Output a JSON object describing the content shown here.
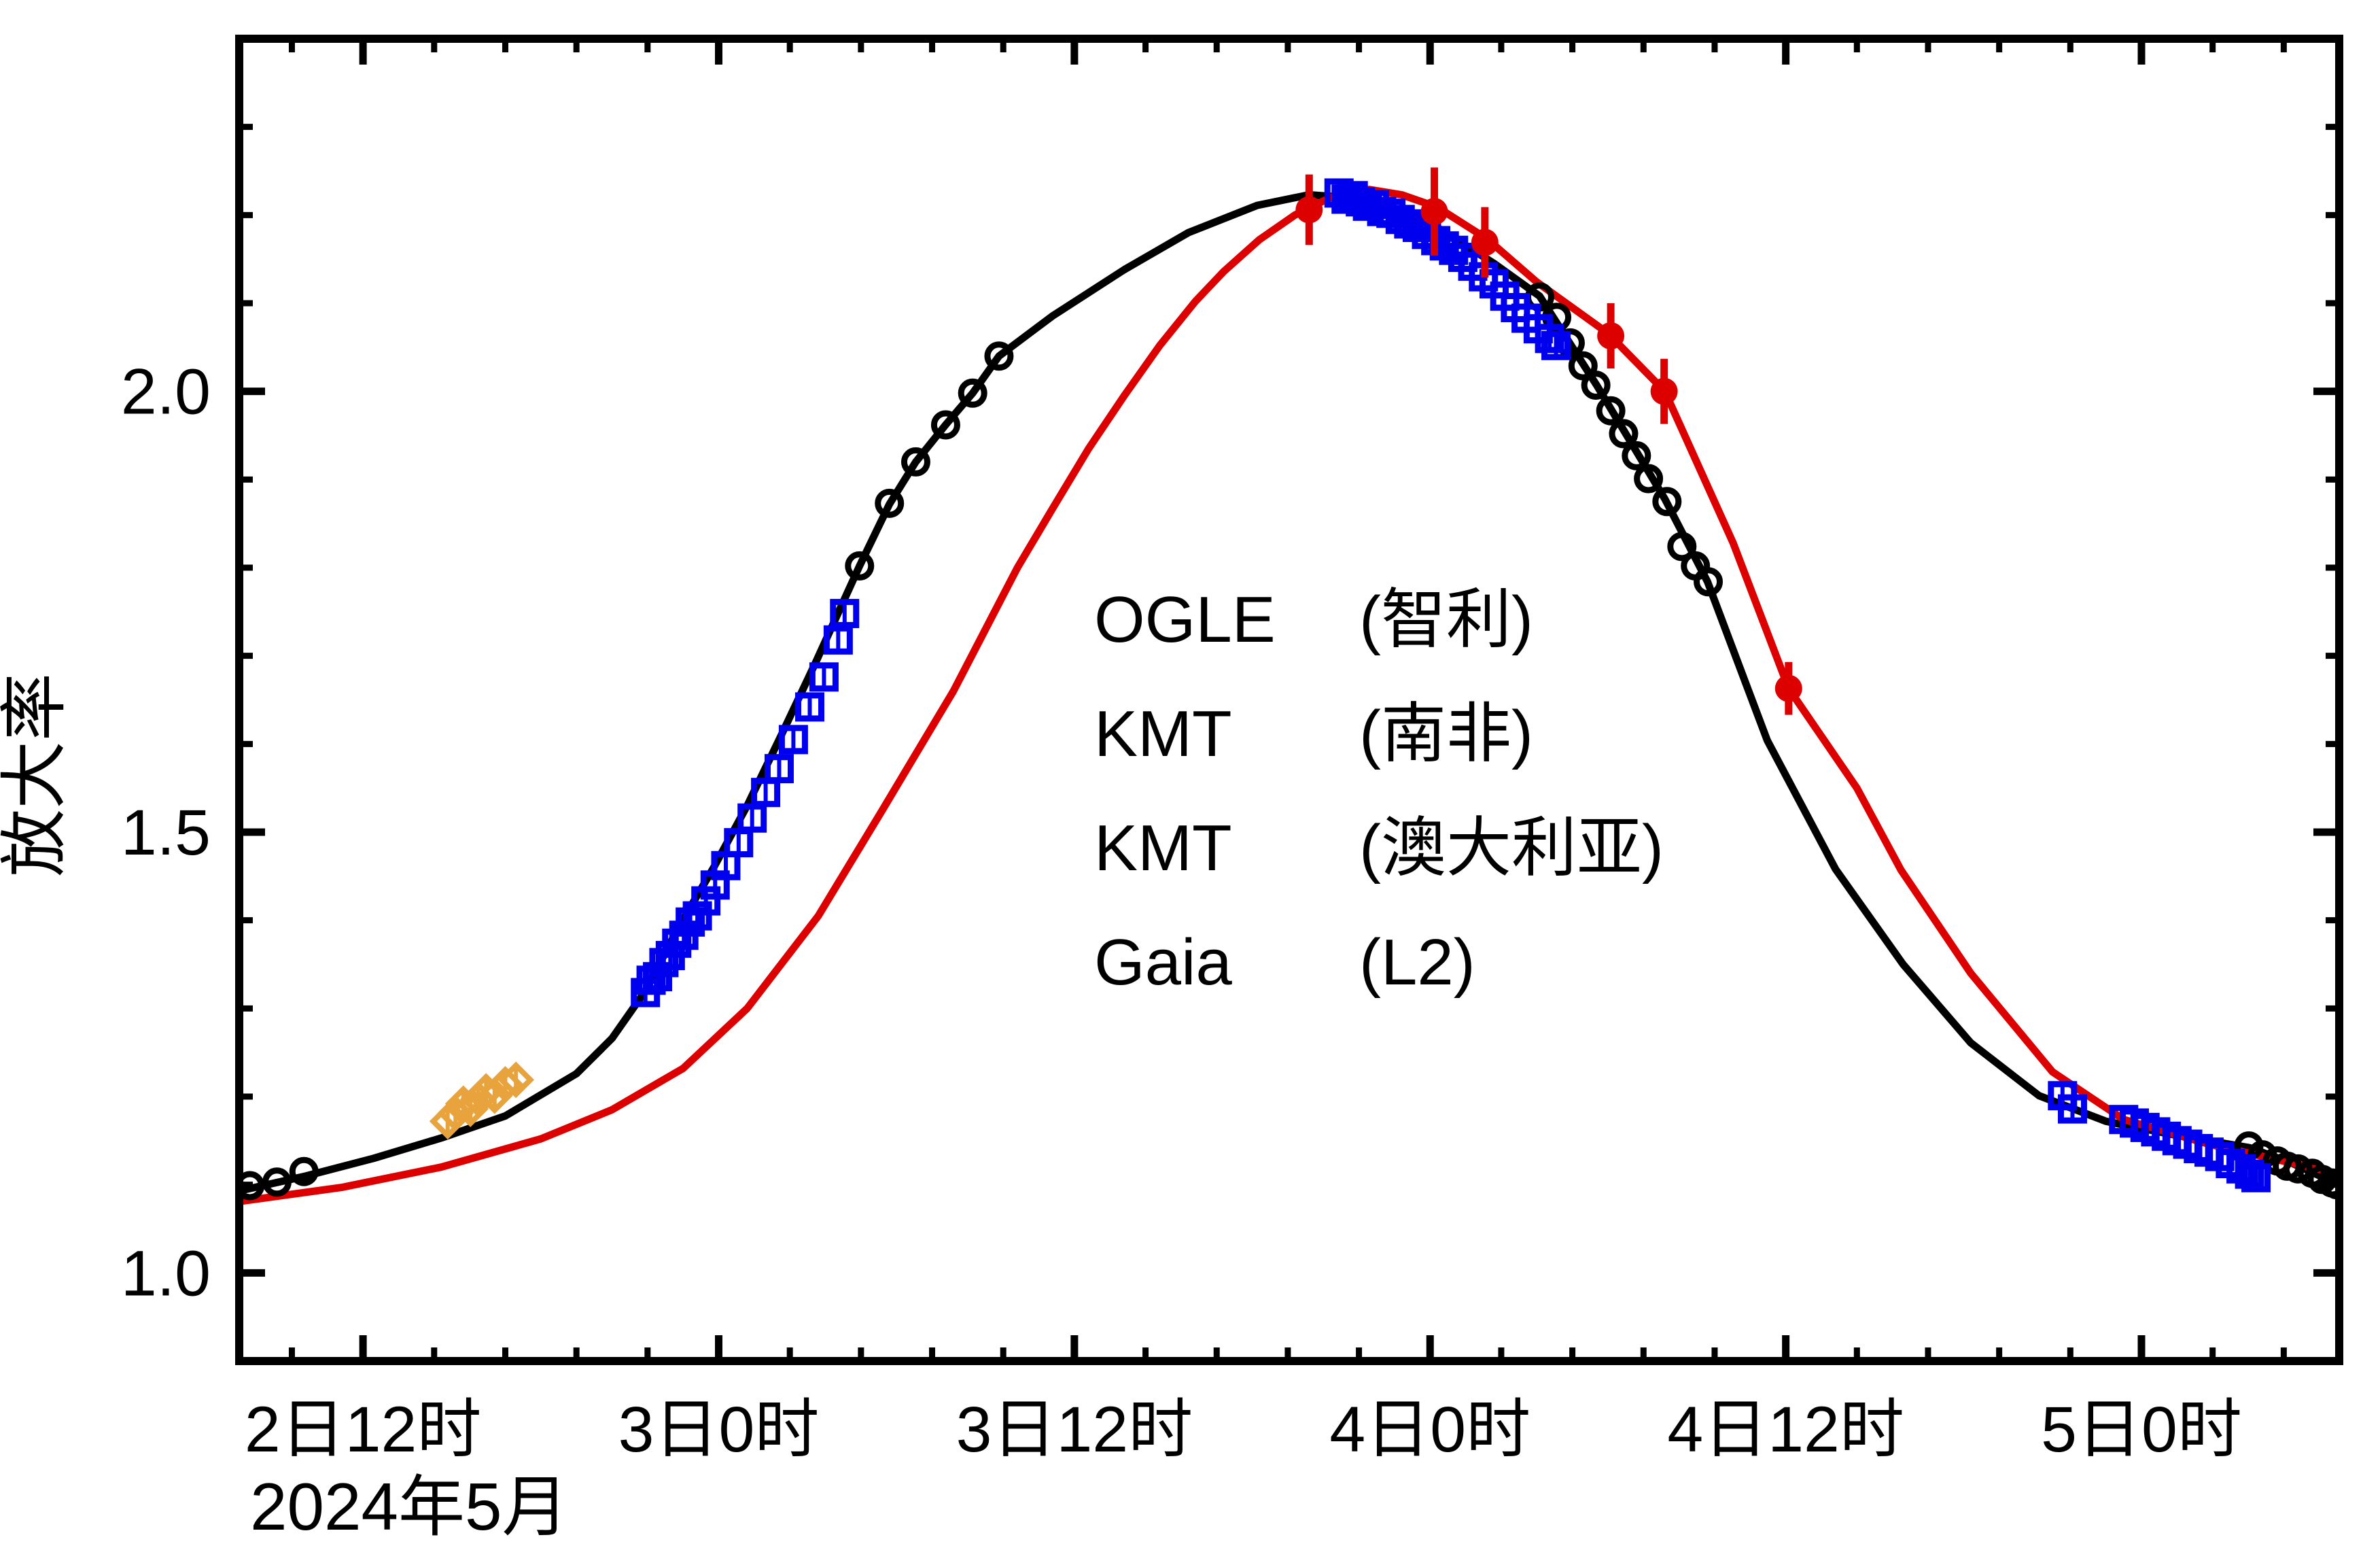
{
  "chart_data": {
    "type": "scatter",
    "title": "",
    "xlabel": "2024年5月",
    "ylabel": "放大率",
    "x_domain": [
      2.326,
      5.278
    ],
    "y_domain": [
      0.9,
      2.4
    ],
    "grid": false,
    "legend_position": "center",
    "x_major_ticks": [
      {
        "t": 2.5,
        "label": "2日12时"
      },
      {
        "t": 3.0,
        "label": "3日0时"
      },
      {
        "t": 3.5,
        "label": "3日12时"
      },
      {
        "t": 4.0,
        "label": "4日0时"
      },
      {
        "t": 4.5,
        "label": "4日12时"
      },
      {
        "t": 5.0,
        "label": "5日0时"
      }
    ],
    "x_minor_step": 0.1,
    "y_major_ticks": [
      {
        "v": 1.0,
        "label": "1.0"
      },
      {
        "v": 1.5,
        "label": "1.5"
      },
      {
        "v": 2.0,
        "label": "2.0"
      }
    ],
    "y_minor_step": 0.1,
    "models": [
      {
        "name": "ground-model",
        "color": "#000000",
        "points": [
          [
            2.326,
            1.093
          ],
          [
            2.42,
            1.11
          ],
          [
            2.515,
            1.13
          ],
          [
            2.61,
            1.153
          ],
          [
            2.7,
            1.178
          ],
          [
            2.8,
            1.226
          ],
          [
            2.85,
            1.266
          ],
          [
            2.897,
            1.32
          ],
          [
            2.945,
            1.394
          ],
          [
            2.993,
            1.46
          ],
          [
            3.04,
            1.53
          ],
          [
            3.088,
            1.61
          ],
          [
            3.136,
            1.692
          ],
          [
            3.198,
            1.802
          ],
          [
            3.24,
            1.872
          ],
          [
            3.277,
            1.92
          ],
          [
            3.319,
            1.962
          ],
          [
            3.357,
            1.998
          ],
          [
            3.394,
            2.04
          ],
          [
            3.47,
            2.086
          ],
          [
            3.57,
            2.138
          ],
          [
            3.66,
            2.18
          ],
          [
            3.757,
            2.211
          ],
          [
            3.83,
            2.223
          ],
          [
            3.9,
            2.219
          ],
          [
            4.0,
            2.191
          ],
          [
            4.09,
            2.145
          ],
          [
            4.154,
            2.108
          ],
          [
            4.235,
            2.006
          ],
          [
            4.33,
            1.878
          ],
          [
            4.39,
            1.784
          ],
          [
            4.474,
            1.604
          ],
          [
            4.57,
            1.458
          ],
          [
            4.665,
            1.35
          ],
          [
            4.76,
            1.261
          ],
          [
            4.856,
            1.201
          ],
          [
            4.95,
            1.172
          ],
          [
            5.05,
            1.156
          ],
          [
            5.152,
            1.142
          ],
          [
            5.21,
            1.125
          ],
          [
            5.278,
            1.1
          ]
        ]
      },
      {
        "name": "gaia-model",
        "color": "#DD0000",
        "points": [
          [
            2.326,
            1.081
          ],
          [
            2.47,
            1.097
          ],
          [
            2.61,
            1.12
          ],
          [
            2.75,
            1.152
          ],
          [
            2.85,
            1.185
          ],
          [
            2.95,
            1.232
          ],
          [
            3.04,
            1.3
          ],
          [
            3.14,
            1.405
          ],
          [
            3.23,
            1.525
          ],
          [
            3.33,
            1.66
          ],
          [
            3.42,
            1.8
          ],
          [
            3.47,
            1.868
          ],
          [
            3.52,
            1.935
          ],
          [
            3.57,
            1.995
          ],
          [
            3.62,
            2.052
          ],
          [
            3.67,
            2.102
          ],
          [
            3.71,
            2.136
          ],
          [
            3.76,
            2.172
          ],
          [
            3.81,
            2.2
          ],
          [
            3.86,
            2.22
          ],
          [
            3.914,
            2.229
          ],
          [
            3.96,
            2.223
          ],
          [
            4.01,
            2.209
          ],
          [
            4.08,
            2.173
          ],
          [
            4.15,
            2.124
          ],
          [
            4.25,
            2.066
          ],
          [
            4.33,
            2.0
          ],
          [
            4.426,
            1.828
          ],
          [
            4.504,
            1.663
          ],
          [
            4.6,
            1.55
          ],
          [
            4.662,
            1.457
          ],
          [
            4.76,
            1.34
          ],
          [
            4.875,
            1.228
          ],
          [
            4.975,
            1.174
          ],
          [
            5.095,
            1.146
          ],
          [
            5.215,
            1.124
          ],
          [
            5.278,
            1.112
          ]
        ]
      }
    ],
    "series": [
      {
        "name": "OGLE",
        "site_label": "(智利)",
        "color": "#000000",
        "marker": "open-circle",
        "points": [
          [
            2.341,
            1.099
          ],
          [
            2.379,
            1.103
          ],
          [
            2.417,
            1.115
          ],
          [
            3.198,
            1.802
          ],
          [
            3.24,
            1.873
          ],
          [
            3.277,
            1.92
          ],
          [
            3.319,
            1.962
          ],
          [
            3.357,
            1.998
          ],
          [
            3.394,
            2.04
          ],
          [
            4.154,
            2.107
          ],
          [
            4.178,
            2.084
          ],
          [
            4.197,
            2.055
          ],
          [
            4.215,
            2.029
          ],
          [
            4.233,
            2.007
          ],
          [
            4.254,
            1.978
          ],
          [
            4.272,
            1.952
          ],
          [
            4.29,
            1.927
          ],
          [
            4.307,
            1.901
          ],
          [
            4.333,
            1.875
          ],
          [
            4.354,
            1.824
          ],
          [
            4.373,
            1.802
          ],
          [
            4.391,
            1.784
          ],
          [
            5.151,
            1.144
          ],
          [
            5.17,
            1.134
          ],
          [
            5.191,
            1.127
          ],
          [
            5.205,
            1.121
          ],
          [
            5.22,
            1.118
          ],
          [
            5.24,
            1.113
          ],
          [
            5.254,
            1.106
          ],
          [
            5.268,
            1.102
          ],
          [
            5.275,
            1.1
          ]
        ]
      },
      {
        "name": "KMT",
        "site_label": "(南非)",
        "color": "#0000EE",
        "marker": "open-square",
        "points": [
          [
            2.897,
            1.318,
            0.012
          ],
          [
            2.905,
            1.332,
            0.012
          ],
          [
            2.914,
            1.336,
            0.012
          ],
          [
            2.923,
            1.352,
            0.012
          ],
          [
            2.932,
            1.36,
            0.012
          ],
          [
            2.941,
            1.374,
            0.012
          ],
          [
            2.951,
            1.383,
            0.012
          ],
          [
            2.96,
            1.398,
            0.012
          ],
          [
            2.97,
            1.405,
            0.012
          ],
          [
            2.982,
            1.422,
            0.012
          ],
          [
            2.995,
            1.44,
            0.012
          ],
          [
            3.01,
            1.462,
            0.012
          ],
          [
            3.028,
            1.488,
            0.012
          ],
          [
            3.047,
            1.516,
            0.012
          ],
          [
            3.066,
            1.545,
            0.012
          ],
          [
            3.085,
            1.572,
            0.012
          ],
          [
            3.105,
            1.605,
            0.012
          ],
          [
            3.128,
            1.642,
            0.012
          ],
          [
            3.148,
            1.676,
            0.012
          ],
          [
            3.168,
            1.718,
            0.012
          ],
          [
            3.177,
            1.748,
            0.012
          ],
          [
            3.872,
            2.225,
            0.012
          ],
          [
            3.882,
            2.218,
            0.012
          ],
          [
            3.892,
            2.222,
            0.012
          ],
          [
            3.902,
            2.215,
            0.012
          ],
          [
            3.912,
            2.21,
            0.012
          ],
          [
            3.922,
            2.212,
            0.012
          ],
          [
            3.932,
            2.204,
            0.012
          ],
          [
            3.945,
            2.202,
            0.012
          ],
          [
            3.958,
            2.195,
            0.012
          ],
          [
            3.97,
            2.19,
            0.012
          ],
          [
            3.982,
            2.186,
            0.012
          ],
          [
            3.995,
            2.178,
            0.012
          ],
          [
            4.008,
            2.171,
            0.012
          ],
          [
            4.02,
            2.165,
            0.012
          ],
          [
            4.033,
            2.16,
            0.012
          ],
          [
            4.046,
            2.152,
            0.012
          ],
          [
            4.06,
            2.142,
            0.012
          ],
          [
            4.075,
            2.13,
            0.012
          ],
          [
            4.09,
            2.122,
            0.012
          ],
          [
            4.105,
            2.108,
            0.012
          ],
          [
            4.12,
            2.095,
            0.012
          ],
          [
            4.135,
            2.083,
            0.012
          ],
          [
            4.152,
            2.071,
            0.012
          ],
          [
            4.168,
            2.06,
            0.012
          ],
          [
            4.177,
            2.052,
            0.012
          ],
          [
            4.889,
            1.201,
            0.012
          ],
          [
            4.903,
            1.186,
            0.012
          ],
          [
            4.975,
            1.174,
            0.012
          ],
          [
            4.99,
            1.17,
            0.012
          ],
          [
            5.005,
            1.165,
            0.012
          ],
          [
            5.02,
            1.16,
            0.012
          ],
          [
            5.035,
            1.155,
            0.012
          ],
          [
            5.05,
            1.15,
            0.012
          ],
          [
            5.065,
            1.146,
            0.012
          ],
          [
            5.08,
            1.141,
            0.012
          ],
          [
            5.095,
            1.137,
            0.012
          ],
          [
            5.11,
            1.132,
            0.012
          ],
          [
            5.125,
            1.124,
            0.012
          ],
          [
            5.14,
            1.118,
            0.012
          ],
          [
            5.152,
            1.112,
            0.012
          ],
          [
            5.161,
            1.108,
            0.012
          ]
        ]
      },
      {
        "name": "KMT",
        "site_label": "(澳大利亚)",
        "color": "#E8A33C",
        "marker": "open-diamond",
        "points": [
          [
            2.619,
            1.172,
            0.012
          ],
          [
            2.63,
            1.181,
            0.012
          ],
          [
            2.641,
            1.192,
            0.012
          ],
          [
            2.651,
            1.186,
            0.012
          ],
          [
            2.662,
            1.197,
            0.012
          ],
          [
            2.673,
            1.206,
            0.012
          ],
          [
            2.685,
            1.201,
            0.012
          ],
          [
            2.7,
            1.214,
            0.012
          ],
          [
            2.715,
            1.219,
            0.012
          ]
        ]
      },
      {
        "name": "Gaia",
        "site_label": "(L2)",
        "color": "#DD0000",
        "marker": "filled-circle",
        "points": [
          [
            3.83,
            2.206,
            0.04
          ],
          [
            4.006,
            2.204,
            0.05
          ],
          [
            4.077,
            2.169,
            0.04
          ],
          [
            4.254,
            2.063,
            0.037
          ],
          [
            4.329,
            2.0,
            0.037
          ],
          [
            4.504,
            1.663,
            0.03
          ]
        ]
      }
    ]
  },
  "legend": {
    "rows": [
      {
        "name": "OGLE",
        "site": "(智利)",
        "color": "#000000"
      },
      {
        "name": "KMT",
        "site": "(南非)",
        "color": "#0000EE"
      },
      {
        "name": "KMT",
        "site": "(澳大利亚)",
        "color": "#E8A33C"
      },
      {
        "name": "Gaia",
        "site": "(L2)",
        "color": "#DD0000"
      }
    ]
  },
  "axis_titles": {
    "y": "放大率",
    "x_secondary": "2024年5月"
  }
}
